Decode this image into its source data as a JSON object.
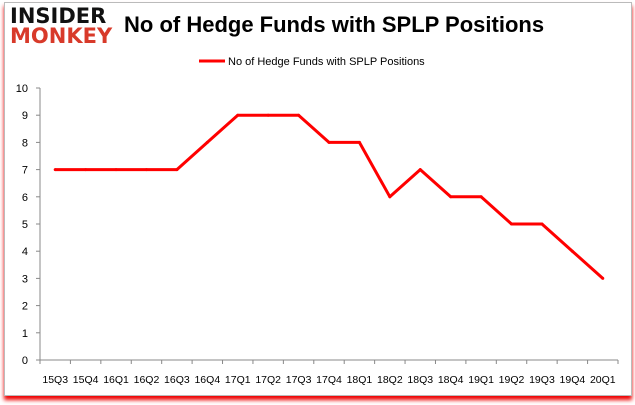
{
  "logo": {
    "line1": "INSIDER",
    "line2": "MONKEY"
  },
  "chart_data": {
    "type": "line",
    "title": "No of Hedge Funds with SPLP Positions",
    "categories": [
      "15Q3",
      "15Q4",
      "16Q1",
      "16Q2",
      "16Q3",
      "16Q4",
      "17Q1",
      "17Q2",
      "17Q3",
      "17Q4",
      "18Q1",
      "18Q2",
      "18Q3",
      "18Q4",
      "19Q1",
      "19Q2",
      "19Q3",
      "19Q4",
      "20Q1"
    ],
    "series": [
      {
        "name": "No of Hedge Funds with SPLP Positions",
        "values": [
          7,
          7,
          7,
          7,
          7,
          8,
          9,
          9,
          9,
          8,
          8,
          6,
          7,
          6,
          6,
          5,
          5,
          4,
          3
        ],
        "color": "#ff0000"
      }
    ],
    "yticks": [
      0,
      1,
      2,
      3,
      4,
      5,
      6,
      7,
      8,
      9,
      10
    ],
    "ylim": [
      0,
      10
    ],
    "grid": false,
    "legend": "top-center"
  }
}
